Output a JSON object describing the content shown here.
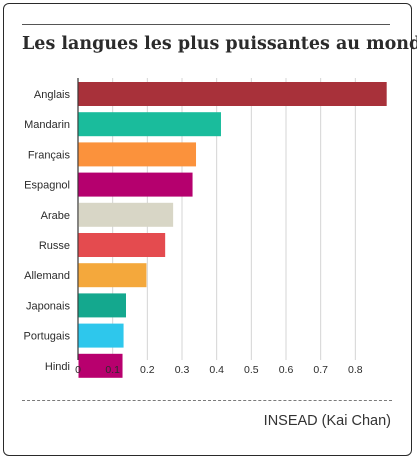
{
  "title": "Les langues les plus puissantes au monde",
  "source": "INSEAD (Kai Chan)",
  "chart_data": {
    "type": "bar",
    "orientation": "horizontal",
    "title": "Les langues les plus puissantes au monde",
    "xlabel": "",
    "ylabel": "",
    "xlim": [
      0,
      0.9
    ],
    "xticks": [
      0,
      0.1,
      0.2,
      0.3,
      0.4,
      0.5,
      0.6,
      0.7,
      0.8
    ],
    "xtick_labels": [
      "0",
      "0.1",
      "0.2",
      "0.3",
      "0.4",
      "0.5",
      "0.6",
      "0.7",
      "0.8"
    ],
    "grid": true,
    "categories": [
      "Anglais",
      "Mandarin",
      "Français",
      "Espagnol",
      "Arabe",
      "Russe",
      "Allemand",
      "Japonais",
      "Portugais",
      "Hindi"
    ],
    "values": [
      0.889,
      0.411,
      0.339,
      0.329,
      0.273,
      0.25,
      0.196,
      0.137,
      0.13,
      0.127
    ],
    "colors": [
      "#a8313a",
      "#1abc9c",
      "#fb923c",
      "#b5006e",
      "#d8d6c6",
      "#e44b4f",
      "#f4a83c",
      "#14a88e",
      "#2ec7ec",
      "#b8006e"
    ]
  }
}
